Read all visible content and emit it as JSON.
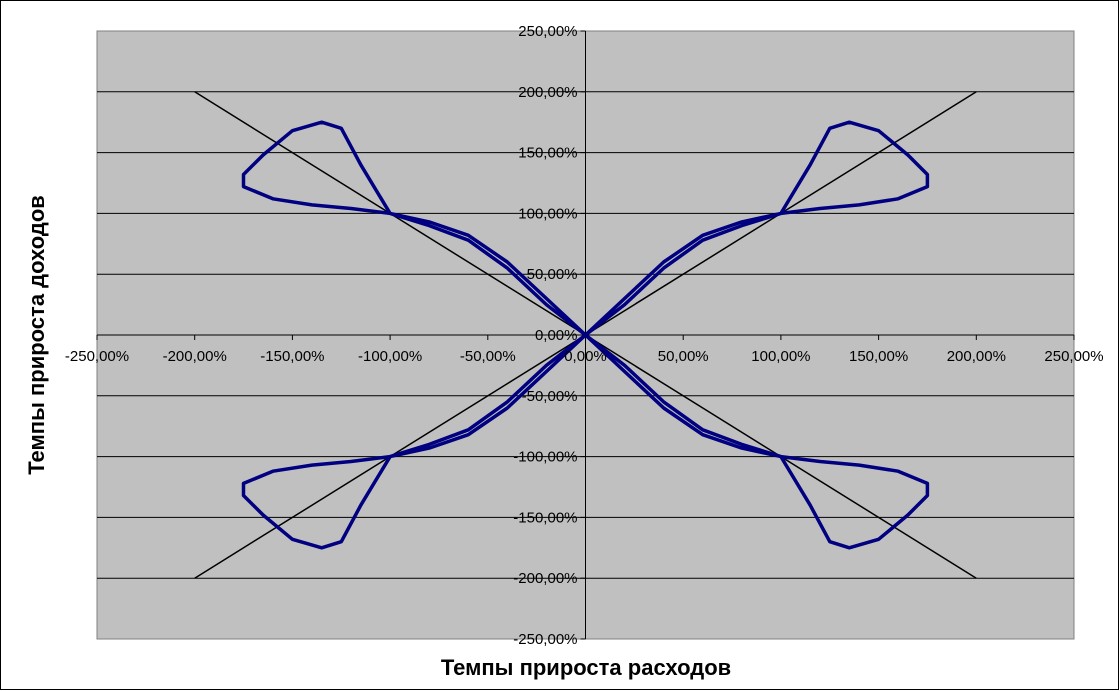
{
  "chart_data": {
    "type": "scatter",
    "title": "",
    "xlabel": "Темпы прироста расходов",
    "ylabel": "Темпы прироста доходов",
    "xlim": [
      -250,
      250
    ],
    "ylim": [
      -250,
      250
    ],
    "x_ticks": [
      -250,
      -200,
      -150,
      -100,
      -50,
      0,
      50,
      100,
      150,
      200,
      250
    ],
    "y_ticks": [
      -250,
      -200,
      -150,
      -100,
      -50,
      0,
      50,
      100,
      150,
      200,
      250
    ],
    "x_tick_labels": [
      "-250,00%",
      "-200,00%",
      "-150,00%",
      "-100,00%",
      "-50,00%",
      "0,00%",
      "50,00%",
      "100,00%",
      "150,00%",
      "200,00%",
      "250,00%"
    ],
    "y_tick_labels": [
      "-250,00%",
      "-200,00%",
      "-150,00%",
      "-100,00%",
      "-50,00%",
      "0,00%",
      "50,00%",
      "100,00%",
      "150,00%",
      "200,00%",
      "250,00%"
    ],
    "grid": true,
    "plot_background": "#c0c0c0",
    "curve_color": "#000080",
    "reference_color": "#000000",
    "series": [
      {
        "kind": "curve",
        "x": [
          0,
          20,
          40,
          60,
          80,
          100,
          115,
          125,
          135,
          150,
          165,
          175,
          175,
          160,
          140,
          120,
          100,
          80,
          60,
          40,
          20,
          0
        ],
        "y": [
          0,
          25,
          55,
          78,
          90,
          100,
          140,
          170,
          175,
          168,
          148,
          132,
          122,
          112,
          107,
          104,
          100,
          93,
          82,
          60,
          30,
          0
        ]
      },
      {
        "kind": "curve",
        "x": [
          0,
          -20,
          -40,
          -60,
          -80,
          -100,
          -115,
          -125,
          -135,
          -150,
          -165,
          -175,
          -175,
          -160,
          -140,
          -120,
          -100,
          -80,
          -60,
          -40,
          -20,
          0
        ],
        "y": [
          0,
          25,
          55,
          78,
          90,
          100,
          140,
          170,
          175,
          168,
          148,
          132,
          122,
          112,
          107,
          104,
          100,
          93,
          82,
          60,
          30,
          0
        ]
      },
      {
        "kind": "curve",
        "x": [
          0,
          20,
          40,
          60,
          80,
          100,
          115,
          125,
          135,
          150,
          165,
          175,
          175,
          160,
          140,
          120,
          100,
          80,
          60,
          40,
          20,
          0
        ],
        "y": [
          0,
          -25,
          -55,
          -78,
          -90,
          -100,
          -140,
          -170,
          -175,
          -168,
          -148,
          -132,
          -122,
          -112,
          -107,
          -104,
          -100,
          -93,
          -82,
          -60,
          -30,
          0
        ]
      },
      {
        "kind": "curve",
        "x": [
          0,
          -20,
          -40,
          -60,
          -80,
          -100,
          -115,
          -125,
          -135,
          -150,
          -165,
          -175,
          -175,
          -160,
          -140,
          -120,
          -100,
          -80,
          -60,
          -40,
          -20,
          0
        ],
        "y": [
          0,
          -25,
          -55,
          -78,
          -90,
          -100,
          -140,
          -170,
          -175,
          -168,
          -148,
          -132,
          -122,
          -112,
          -107,
          -104,
          -100,
          -93,
          -82,
          -60,
          -30,
          0
        ]
      },
      {
        "kind": "reference",
        "x": [
          -200,
          200
        ],
        "y": [
          -200,
          200
        ]
      },
      {
        "kind": "reference",
        "x": [
          -200,
          200
        ],
        "y": [
          200,
          -200
        ]
      }
    ]
  }
}
